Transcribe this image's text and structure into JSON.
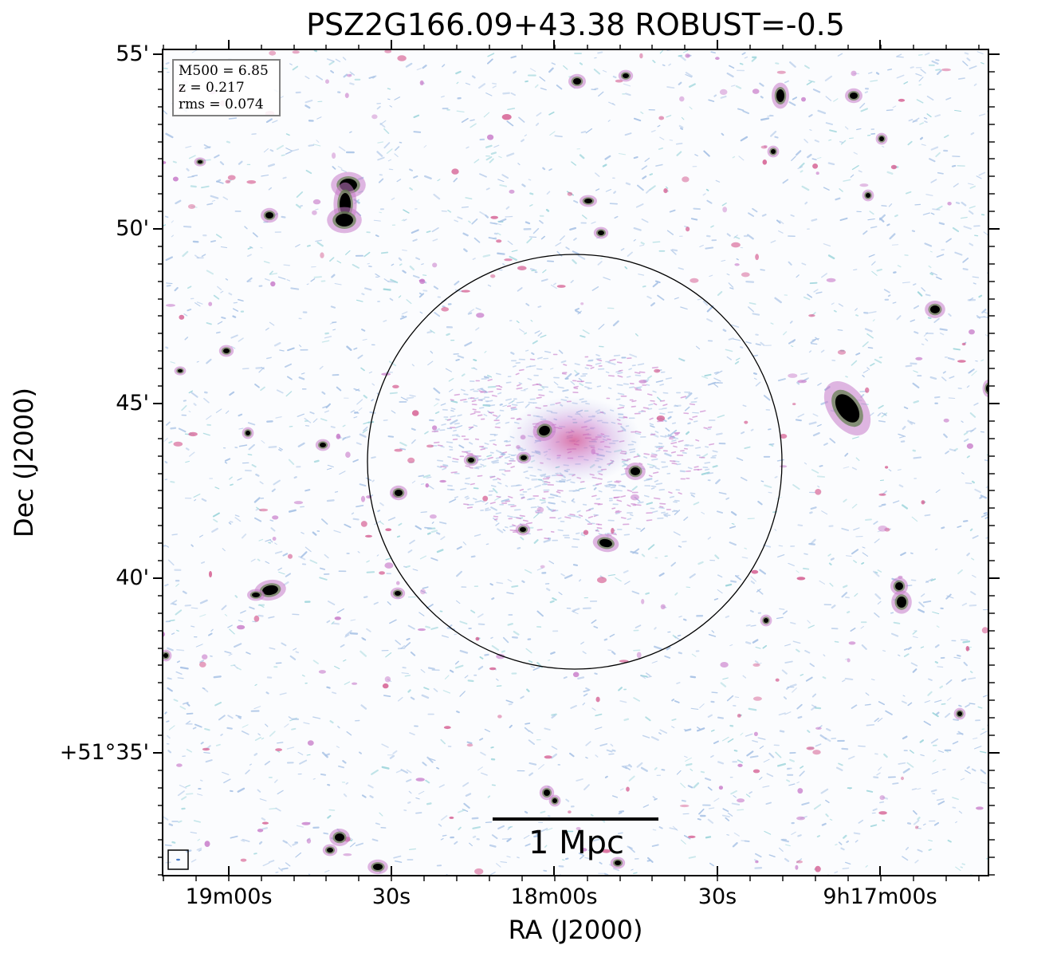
{
  "title": "PSZ2G166.09+43.38 ROBUST=-0.5",
  "axes": {
    "xlabel": "RA (J2000)",
    "ylabel": "Dec (J2000)",
    "x_ticks": [
      "19m00s",
      "30s",
      "18m00s",
      "30s",
      "9h17m00s"
    ],
    "y_ticks": [
      "55'",
      "50'",
      "45'",
      "40'",
      "+51°35'"
    ]
  },
  "info": {
    "mass": "M500 = 6.85",
    "redshift": "z = 0.217",
    "rms": "rms = 0.074"
  },
  "scale_bar": {
    "label": "1 Mpc"
  },
  "colors": {
    "noise_blue": "#a9c3e6",
    "noise_cyan": "#9fd6dc",
    "emission_magenta": "#c77ac9",
    "emission_pink": "#d45a8f",
    "source_core": "#000000"
  }
}
